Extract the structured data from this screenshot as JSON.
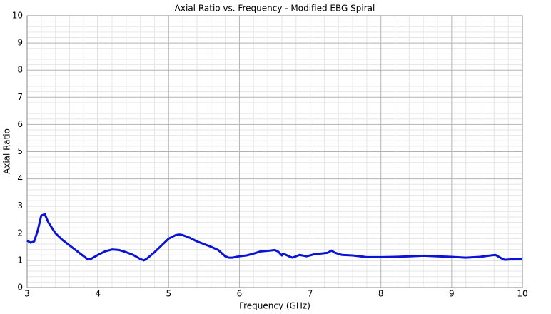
{
  "chart_data": {
    "type": "line",
    "title": "Axial Ratio vs. Frequency - Modified EBG Spiral",
    "x_label": "Frequency (GHz)",
    "y_label": "Axial Ratio",
    "x": [
      3.0,
      3.05,
      3.1,
      3.15,
      3.2,
      3.25,
      3.3,
      3.4,
      3.5,
      3.6,
      3.7,
      3.8,
      3.85,
      3.9,
      4.0,
      4.1,
      4.2,
      4.3,
      4.4,
      4.5,
      4.6,
      4.65,
      4.7,
      4.8,
      4.9,
      5.0,
      5.1,
      5.15,
      5.2,
      5.3,
      5.4,
      5.5,
      5.6,
      5.7,
      5.8,
      5.85,
      5.9,
      6.0,
      6.1,
      6.2,
      6.3,
      6.4,
      6.5,
      6.55,
      6.6,
      6.62,
      6.7,
      6.75,
      6.85,
      6.95,
      7.05,
      7.15,
      7.25,
      7.3,
      7.35,
      7.45,
      7.6,
      7.8,
      8.0,
      8.2,
      8.4,
      8.6,
      8.8,
      9.0,
      9.2,
      9.4,
      9.55,
      9.62,
      9.7,
      9.75,
      9.85,
      10.0
    ],
    "values": [
      1.73,
      1.65,
      1.7,
      2.1,
      2.65,
      2.7,
      2.4,
      2.0,
      1.75,
      1.55,
      1.35,
      1.15,
      1.05,
      1.05,
      1.2,
      1.33,
      1.4,
      1.38,
      1.3,
      1.2,
      1.05,
      1.0,
      1.08,
      1.3,
      1.55,
      1.8,
      1.93,
      1.95,
      1.93,
      1.83,
      1.7,
      1.6,
      1.5,
      1.38,
      1.15,
      1.1,
      1.1,
      1.15,
      1.18,
      1.25,
      1.33,
      1.35,
      1.38,
      1.32,
      1.18,
      1.25,
      1.15,
      1.1,
      1.2,
      1.15,
      1.22,
      1.25,
      1.28,
      1.36,
      1.28,
      1.2,
      1.18,
      1.12,
      1.12,
      1.13,
      1.15,
      1.17,
      1.15,
      1.13,
      1.1,
      1.13,
      1.18,
      1.2,
      1.08,
      1.02,
      1.04,
      1.04
    ],
    "color": "#0a14d2",
    "xlim": [
      3,
      10
    ],
    "xticks": [
      3,
      4,
      5,
      6,
      7,
      8,
      9,
      10
    ],
    "ylim": [
      0,
      10
    ],
    "yticks": [
      0,
      1,
      2,
      3,
      4,
      5,
      6,
      7,
      8,
      9,
      10
    ],
    "grid": true,
    "minor_divisions": 5
  }
}
